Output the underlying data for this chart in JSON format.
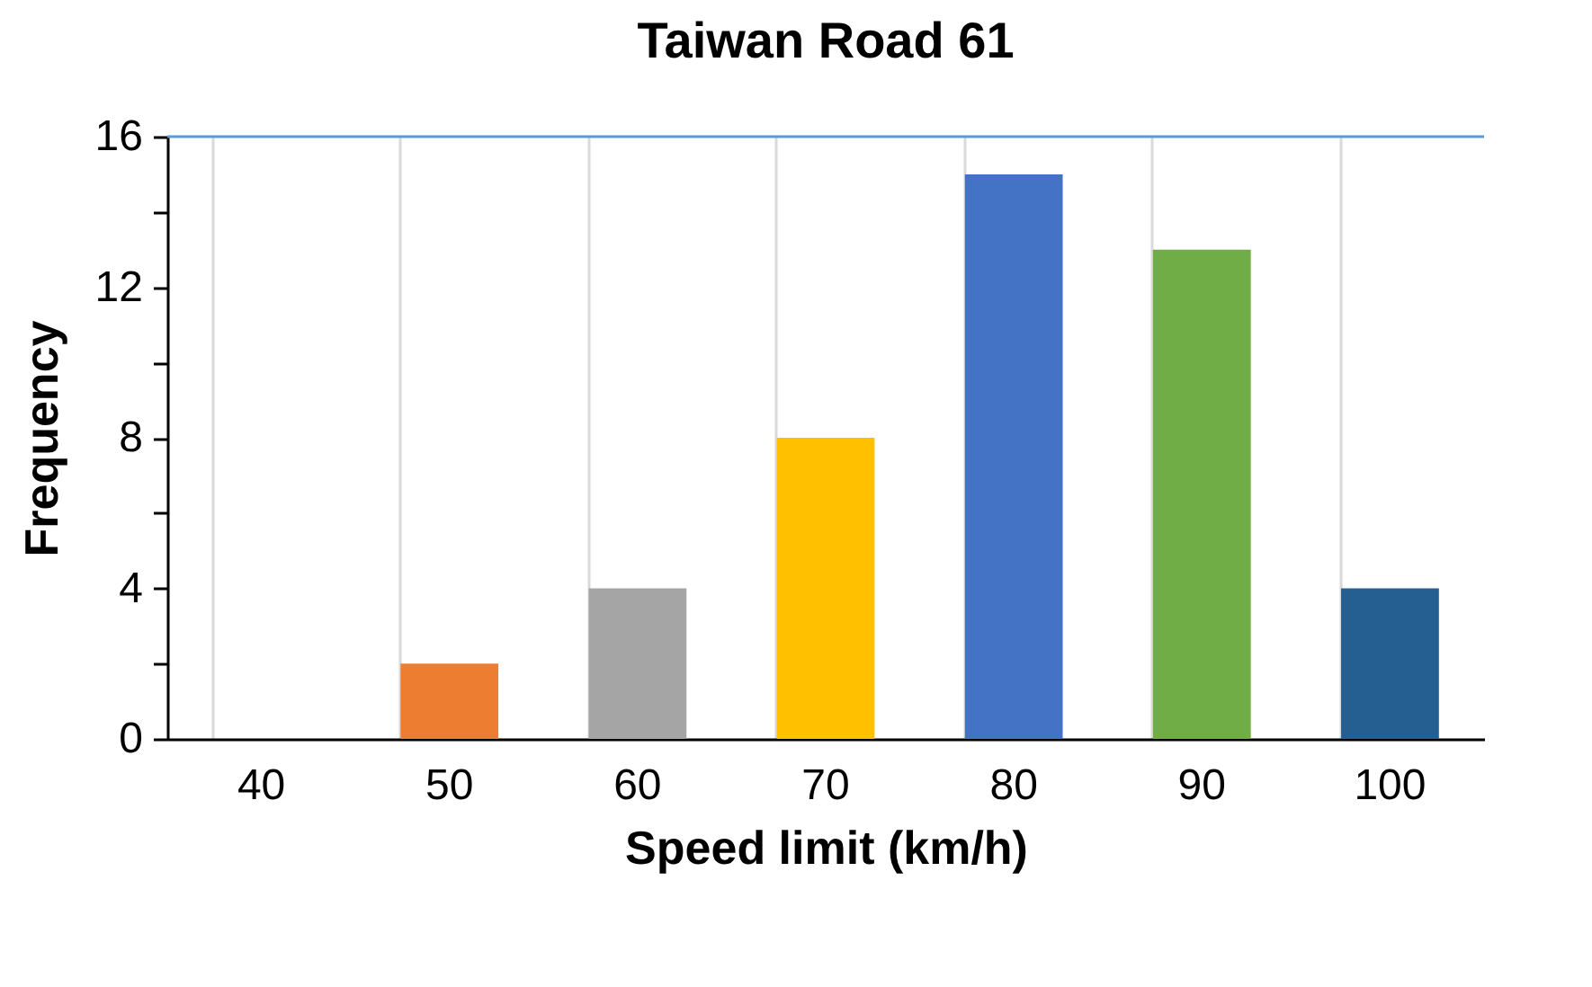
{
  "chart_data": {
    "type": "bar",
    "title": "Taiwan Road 61",
    "xlabel": "Speed limit (km/h)",
    "ylabel": "Frequency",
    "categories": [
      "40",
      "50",
      "60",
      "70",
      "80",
      "90",
      "100"
    ],
    "values": [
      0,
      2,
      4,
      8,
      15,
      13,
      4
    ],
    "colors": [
      "#5b9bd5",
      "#ed7d31",
      "#a5a5a5",
      "#ffc000",
      "#4472c4",
      "#70ad47",
      "#255e91"
    ],
    "ylim": [
      0,
      16
    ],
    "yticks": [
      0,
      {
        "value": 2,
        "label": null
      },
      4,
      {
        "value": 6,
        "label": null
      },
      8,
      {
        "value": 10,
        "label": null
      },
      12,
      {
        "value": 14,
        "label": null
      },
      16
    ],
    "grid": "x",
    "ref_lines": [
      {
        "axis": "y",
        "value": 16,
        "color": "#5b9bd5"
      }
    ]
  }
}
